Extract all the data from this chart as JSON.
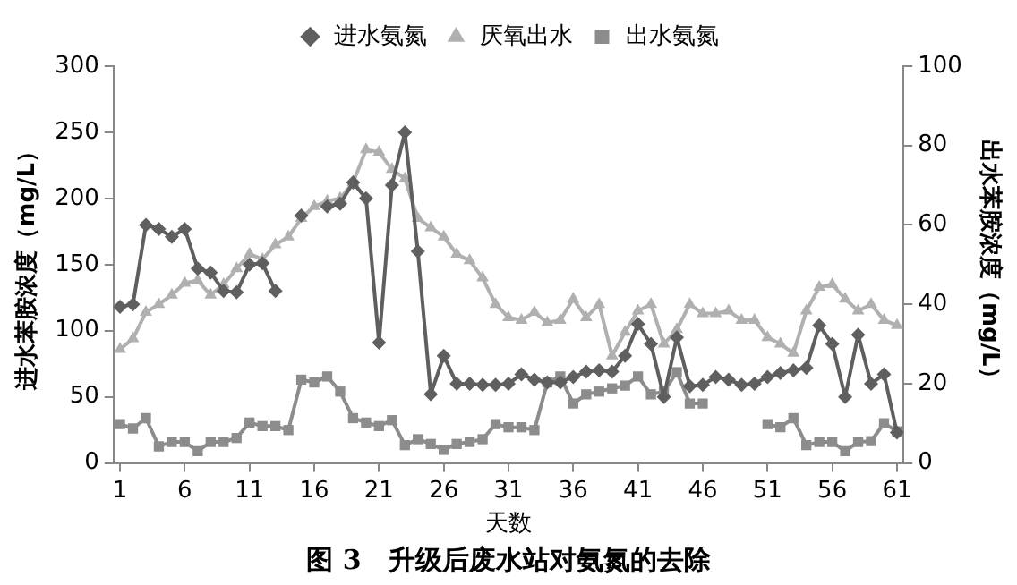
{
  "chart_data": {
    "type": "line",
    "title": "图 3　升级后废水站对氨氮的去除",
    "xlabel": "天数",
    "ylabel": "进水苯胺浓度（mg/L）",
    "y2label": "出水苯胺浓度（mg/L）",
    "x": [
      1,
      2,
      3,
      4,
      5,
      6,
      7,
      8,
      9,
      10,
      11,
      12,
      13,
      14,
      15,
      16,
      17,
      18,
      19,
      20,
      21,
      22,
      23,
      24,
      25,
      26,
      27,
      28,
      29,
      30,
      31,
      32,
      33,
      34,
      35,
      36,
      37,
      38,
      39,
      40,
      41,
      42,
      43,
      44,
      45,
      46,
      47,
      48,
      49,
      50,
      51,
      52,
      53,
      54,
      55,
      56,
      57,
      58,
      59,
      60,
      61
    ],
    "xlim": [
      0.5,
      61.5
    ],
    "xticks": [
      1,
      6,
      11,
      16,
      21,
      26,
      31,
      36,
      41,
      46,
      51,
      56,
      61
    ],
    "ylim": [
      0,
      300
    ],
    "yticks": [
      0,
      50,
      100,
      150,
      200,
      250,
      300
    ],
    "y2lim": [
      0,
      100
    ],
    "y2ticks": [
      0,
      20,
      40,
      60,
      80,
      100
    ],
    "grid": false,
    "legend": "top",
    "line_style": "solid",
    "series": [
      {
        "name": "进水氨氮",
        "color": "#5f5f5f",
        "marker": "diamond",
        "values": [
          118,
          120,
          180,
          177,
          171,
          177,
          147,
          144,
          130,
          129,
          150,
          151,
          130,
          null,
          187,
          null,
          194,
          196,
          212,
          200,
          91,
          210,
          250,
          160,
          52,
          81,
          60,
          60,
          59,
          59,
          60,
          67,
          63,
          61,
          61,
          65,
          69,
          70,
          69,
          81,
          105,
          90,
          50,
          95,
          58,
          59,
          65,
          63,
          59,
          60,
          65,
          68,
          70,
          72,
          104,
          90,
          50,
          97,
          60,
          67,
          23
        ]
      },
      {
        "name": "厌氧出水",
        "color": "#b0b0b0",
        "marker": "triangle",
        "values": [
          86,
          94,
          114,
          120,
          127,
          136,
          138,
          127,
          135,
          147,
          158,
          154,
          165,
          171,
          185,
          194,
          198,
          200,
          212,
          237,
          235,
          222,
          215,
          185,
          178,
          171,
          158,
          153,
          140,
          120,
          110,
          108,
          114,
          106,
          108,
          124,
          110,
          120,
          81,
          99,
          115,
          120,
          90,
          101,
          120,
          113,
          113,
          115,
          108,
          108,
          95,
          90,
          83,
          115,
          133,
          135,
          124,
          115,
          120,
          108,
          104
        ]
      },
      {
        "name": "出水氨氮",
        "color": "#8c8c8c",
        "marker": "square",
        "axis": "y2",
        "values": [
          9.8,
          8.7,
          11.3,
          4.2,
          5.3,
          5.3,
          3,
          5.3,
          5.3,
          6.3,
          10.2,
          9.3,
          9.3,
          8.3,
          21,
          20.3,
          21.8,
          18,
          11.3,
          10.2,
          9.3,
          10.8,
          4.5,
          6,
          4.8,
          3.3,
          4.8,
          5.3,
          6,
          9.8,
          9,
          9,
          8.3,
          20.3,
          21.8,
          15,
          17.3,
          18,
          18.8,
          19.5,
          21.8,
          17.3,
          18,
          22.9,
          15,
          15,
          null,
          null,
          null,
          null,
          9.8,
          9,
          11.3,
          4.5,
          5.3,
          5.3,
          3,
          5.3,
          5.5,
          10,
          8
        ]
      }
    ]
  }
}
